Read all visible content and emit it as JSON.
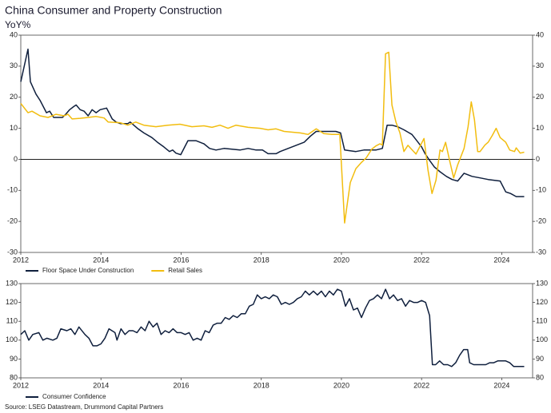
{
  "source": "Source: LSEG Datastream, Drummond Capital Partners",
  "chart_data": [
    {
      "type": "line",
      "title": "China Consumer and Property Construction",
      "subtitle": "YoY%",
      "xlim": [
        2012,
        2024.77
      ],
      "xticks": [
        2012,
        2014,
        2016,
        2018,
        2020,
        2022,
        2024
      ],
      "ylim": [
        -30,
        40
      ],
      "yticks": [
        40,
        30,
        20,
        10,
        0,
        -10,
        -20,
        -30
      ],
      "y2lim": [
        -30,
        40
      ],
      "y2ticks": [
        40,
        30,
        20,
        10,
        0,
        -10,
        -20,
        -30
      ],
      "zero_line": true,
      "series": [
        {
          "name": "Floor Space Under Construction",
          "color": "#0f1f3d",
          "x": [
            2012.0,
            2012.18,
            2012.24,
            2012.38,
            2012.48,
            2012.64,
            2012.72,
            2012.82,
            2013.04,
            2013.12,
            2013.22,
            2013.32,
            2013.38,
            2013.48,
            2013.58,
            2013.68,
            2013.78,
            2013.88,
            2013.98,
            2014.14,
            2014.28,
            2014.38,
            2014.48,
            2014.67,
            2014.73,
            2014.91,
            2015.07,
            2015.27,
            2015.41,
            2015.57,
            2015.71,
            2015.79,
            2015.87,
            2015.99,
            2016.17,
            2016.37,
            2016.57,
            2016.71,
            2016.87,
            2017.07,
            2017.47,
            2017.67,
            2017.87,
            2018.03,
            2018.17,
            2018.37,
            2018.47,
            2018.67,
            2018.87,
            2019.07,
            2019.23,
            2019.37,
            2019.66,
            2019.86,
            2019.98,
            2020.08,
            2020.36,
            2020.56,
            2020.86,
            2021.02,
            2021.14,
            2021.26,
            2021.4,
            2021.56,
            2021.76,
            2021.88,
            2022.0,
            2022.08,
            2022.18,
            2022.32,
            2022.46,
            2022.62,
            2022.76,
            2022.9,
            2023.06,
            2023.26,
            2023.46,
            2023.66,
            2023.96,
            2024.1,
            2024.22,
            2024.36,
            2024.56
          ],
          "values": [
            25,
            35.5,
            25,
            21,
            19,
            15,
            15.5,
            13.5,
            13.5,
            14.5,
            16,
            17,
            17.5,
            16,
            15.5,
            14,
            16,
            15,
            16,
            16.5,
            13,
            12,
            11.5,
            11.5,
            12,
            10,
            8.5,
            7,
            5.5,
            4,
            2.5,
            3,
            2,
            1.5,
            6,
            6,
            5,
            3.5,
            3,
            3.5,
            3,
            3.5,
            3,
            3,
            1.8,
            1.8,
            2.5,
            3.5,
            4.5,
            5.5,
            7.5,
            9,
            9,
            9,
            8.5,
            3,
            2.5,
            3,
            3,
            3.5,
            11,
            11,
            10.5,
            9.5,
            8,
            6,
            4,
            2,
            0,
            -2.5,
            -4,
            -5.5,
            -6.5,
            -7,
            -4.5,
            -5.5,
            -6,
            -6.5,
            -7,
            -10.5,
            -11,
            -12,
            -12
          ]
        },
        {
          "name": "Retail Sales",
          "color": "#f2bd0f",
          "x": [
            2012.0,
            2012.18,
            2012.28,
            2012.48,
            2012.68,
            2012.88,
            2013.08,
            2013.18,
            2013.28,
            2013.48,
            2013.68,
            2013.88,
            2014.08,
            2014.18,
            2014.48,
            2014.67,
            2014.87,
            2015.07,
            2015.37,
            2015.67,
            2015.97,
            2016.27,
            2016.57,
            2016.77,
            2016.97,
            2017.17,
            2017.37,
            2017.67,
            2017.97,
            2018.17,
            2018.37,
            2018.57,
            2018.97,
            2019.17,
            2019.37,
            2019.56,
            2019.76,
            2019.96,
            2020.08,
            2020.22,
            2020.36,
            2020.5,
            2020.62,
            2020.76,
            2020.86,
            2020.96,
            2021.02,
            2021.1,
            2021.18,
            2021.26,
            2021.36,
            2021.46,
            2021.56,
            2021.66,
            2021.76,
            2021.86,
            2022.06,
            2022.16,
            2022.26,
            2022.36,
            2022.46,
            2022.52,
            2022.6,
            2022.7,
            2022.8,
            2022.9,
            2023.06,
            2023.16,
            2023.24,
            2023.32,
            2023.4,
            2023.46,
            2023.58,
            2023.66,
            2023.76,
            2023.86,
            2023.96,
            2024.1,
            2024.2,
            2024.32,
            2024.36,
            2024.46,
            2024.56
          ],
          "values": [
            18,
            15,
            15.5,
            14,
            13.5,
            14.5,
            14,
            14.5,
            13,
            13.2,
            13.5,
            13.8,
            13.3,
            12,
            11.8,
            11,
            12,
            11,
            10.5,
            11,
            11.3,
            10.5,
            10.8,
            10.3,
            11,
            10,
            11,
            10.3,
            10,
            9.5,
            9.8,
            9,
            8.5,
            8,
            9.8,
            8.3,
            8,
            8,
            -20.5,
            -7.5,
            -3,
            -1,
            0.5,
            3.3,
            4.3,
            5,
            4.6,
            34,
            34.5,
            17.5,
            12,
            8.5,
            2.5,
            4.5,
            3.1,
            1.7,
            6.7,
            -3.5,
            -11,
            -6.7,
            3,
            2.5,
            5.5,
            -0.5,
            -6,
            -1.8,
            3.5,
            10.5,
            18.5,
            12.7,
            2.5,
            2.5,
            4.6,
            5.5,
            7.6,
            10,
            7,
            5.5,
            3,
            2.5,
            3.7,
            2,
            2.3
          ]
        }
      ]
    },
    {
      "type": "line",
      "xlim": [
        2012,
        2024.77
      ],
      "xticks": [
        2012,
        2014,
        2016,
        2018,
        2020,
        2022,
        2024
      ],
      "ylim": [
        80,
        130
      ],
      "yticks": [
        130,
        120,
        110,
        100,
        90,
        80
      ],
      "y2lim": [
        80,
        130
      ],
      "y2ticks": [
        130,
        120,
        110,
        100,
        90,
        80
      ],
      "series": [
        {
          "name": "Consumer Confidence",
          "color": "#0f1f3d",
          "x": [
            2012.0,
            2012.1,
            2012.2,
            2012.3,
            2012.45,
            2012.55,
            2012.65,
            2012.8,
            2012.9,
            2013.0,
            2013.15,
            2013.25,
            2013.35,
            2013.45,
            2013.6,
            2013.7,
            2013.8,
            2013.9,
            2014.0,
            2014.1,
            2014.2,
            2014.35,
            2014.4,
            2014.5,
            2014.6,
            2014.7,
            2014.8,
            2014.9,
            2015.0,
            2015.1,
            2015.2,
            2015.3,
            2015.4,
            2015.5,
            2015.6,
            2015.7,
            2015.8,
            2015.9,
            2016.0,
            2016.1,
            2016.2,
            2016.3,
            2016.4,
            2016.5,
            2016.6,
            2016.7,
            2016.8,
            2016.9,
            2017.0,
            2017.1,
            2017.2,
            2017.3,
            2017.4,
            2017.5,
            2017.6,
            2017.7,
            2017.8,
            2017.9,
            2018.0,
            2018.1,
            2018.2,
            2018.3,
            2018.4,
            2018.5,
            2018.6,
            2018.7,
            2018.8,
            2018.9,
            2019.0,
            2019.1,
            2019.2,
            2019.3,
            2019.4,
            2019.5,
            2019.6,
            2019.7,
            2019.8,
            2019.9,
            2020.0,
            2020.1,
            2020.2,
            2020.3,
            2020.4,
            2020.5,
            2020.6,
            2020.7,
            2020.8,
            2020.9,
            2021.0,
            2021.1,
            2021.2,
            2021.3,
            2021.4,
            2021.5,
            2021.6,
            2021.7,
            2021.8,
            2021.9,
            2022.0,
            2022.1,
            2022.2,
            2022.27,
            2022.35,
            2022.45,
            2022.55,
            2022.65,
            2022.75,
            2022.85,
            2022.95,
            2023.05,
            2023.15,
            2023.2,
            2023.3,
            2023.4,
            2023.5,
            2023.6,
            2023.7,
            2023.8,
            2023.9,
            2024.0,
            2024.1,
            2024.2,
            2024.3,
            2024.45,
            2024.56
          ],
          "values": [
            103,
            105,
            100,
            103,
            104,
            100,
            101,
            100,
            101,
            106,
            105,
            106,
            103,
            107,
            103,
            101,
            97,
            97,
            98,
            101,
            106,
            104,
            100,
            106,
            103,
            105,
            105,
            104,
            107,
            105,
            110,
            107,
            109,
            103,
            105,
            104,
            106,
            104,
            104,
            103,
            104,
            100,
            101,
            100,
            105,
            104,
            108,
            109,
            109,
            112,
            111,
            113,
            112,
            114,
            114,
            118,
            119,
            124,
            122,
            123,
            122,
            124,
            123,
            119,
            120,
            119,
            120,
            122,
            123,
            126,
            124,
            126,
            124,
            126,
            123,
            126,
            124,
            127,
            126,
            118,
            122,
            116,
            117,
            112,
            117,
            121,
            122,
            124,
            122,
            127,
            122,
            124,
            121,
            122,
            118,
            121,
            120,
            120,
            121,
            120,
            113,
            87,
            87,
            89,
            87,
            87,
            86,
            88,
            92,
            95,
            95,
            88,
            87,
            87,
            87,
            87,
            88,
            88,
            89,
            89,
            89,
            88,
            86,
            86,
            86
          ]
        }
      ]
    }
  ]
}
